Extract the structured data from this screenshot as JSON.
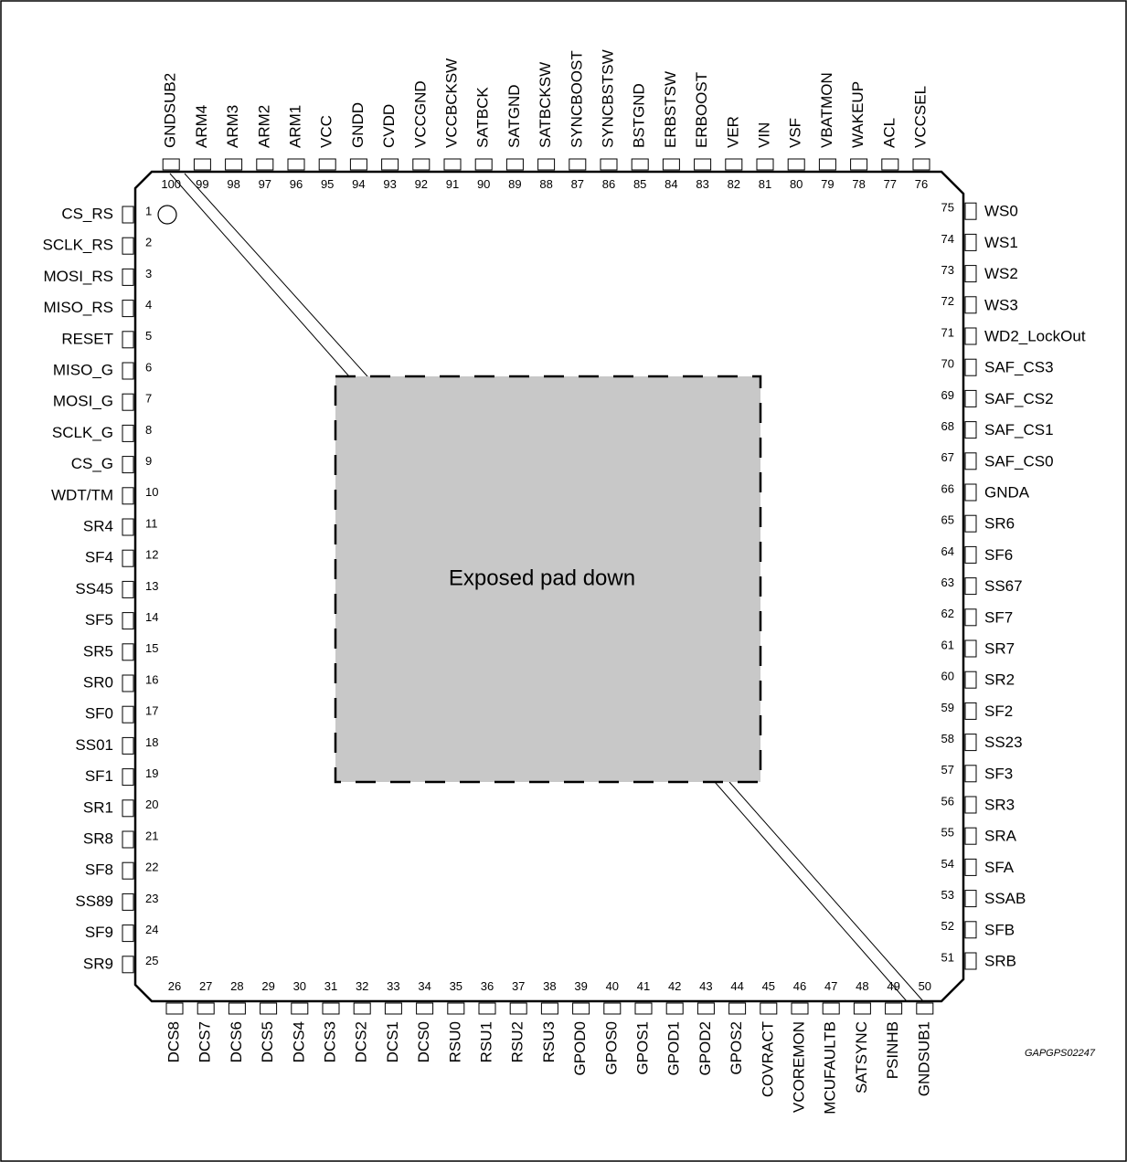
{
  "package": {
    "pad_label": "Exposed pad down",
    "doc_code": "GAPGPS02247"
  },
  "pins": {
    "left": [
      {
        "num": "1",
        "name": "CS_RS"
      },
      {
        "num": "2",
        "name": "SCLK_RS"
      },
      {
        "num": "3",
        "name": "MOSI_RS"
      },
      {
        "num": "4",
        "name": "MISO_RS"
      },
      {
        "num": "5",
        "name": "RESET"
      },
      {
        "num": "6",
        "name": "MISO_G"
      },
      {
        "num": "7",
        "name": "MOSI_G"
      },
      {
        "num": "8",
        "name": "SCLK_G"
      },
      {
        "num": "9",
        "name": "CS_G"
      },
      {
        "num": "10",
        "name": "WDT/TM"
      },
      {
        "num": "11",
        "name": "SR4"
      },
      {
        "num": "12",
        "name": "SF4"
      },
      {
        "num": "13",
        "name": "SS45"
      },
      {
        "num": "14",
        "name": "SF5"
      },
      {
        "num": "15",
        "name": "SR5"
      },
      {
        "num": "16",
        "name": "SR0"
      },
      {
        "num": "17",
        "name": "SF0"
      },
      {
        "num": "18",
        "name": "SS01"
      },
      {
        "num": "19",
        "name": "SF1"
      },
      {
        "num": "20",
        "name": "SR1"
      },
      {
        "num": "21",
        "name": "SR8"
      },
      {
        "num": "22",
        "name": "SF8"
      },
      {
        "num": "23",
        "name": "SS89"
      },
      {
        "num": "24",
        "name": "SF9"
      },
      {
        "num": "25",
        "name": "SR9"
      }
    ],
    "bottom": [
      {
        "num": "26",
        "name": "DCS8"
      },
      {
        "num": "27",
        "name": "DCS7"
      },
      {
        "num": "28",
        "name": "DCS6"
      },
      {
        "num": "29",
        "name": "DCS5"
      },
      {
        "num": "30",
        "name": "DCS4"
      },
      {
        "num": "31",
        "name": "DCS3"
      },
      {
        "num": "32",
        "name": "DCS2"
      },
      {
        "num": "33",
        "name": "DCS1"
      },
      {
        "num": "34",
        "name": "DCS0"
      },
      {
        "num": "35",
        "name": "RSU0"
      },
      {
        "num": "36",
        "name": "RSU1"
      },
      {
        "num": "37",
        "name": "RSU2"
      },
      {
        "num": "38",
        "name": "RSU3"
      },
      {
        "num": "39",
        "name": "GPOD0"
      },
      {
        "num": "40",
        "name": "GPOS0"
      },
      {
        "num": "41",
        "name": "GPOS1"
      },
      {
        "num": "42",
        "name": "GPOD1"
      },
      {
        "num": "43",
        "name": "GPOD2"
      },
      {
        "num": "44",
        "name": "GPOS2"
      },
      {
        "num": "45",
        "name": "COVRACT"
      },
      {
        "num": "46",
        "name": "VCOREMON"
      },
      {
        "num": "47",
        "name": "MCUFAULTB"
      },
      {
        "num": "48",
        "name": "SATSYNC"
      },
      {
        "num": "49",
        "name": "PSINHB"
      },
      {
        "num": "50",
        "name": "GNDSUB1"
      }
    ],
    "right": [
      {
        "num": "51",
        "name": "SRB"
      },
      {
        "num": "52",
        "name": "SFB"
      },
      {
        "num": "53",
        "name": "SSAB"
      },
      {
        "num": "54",
        "name": "SFA"
      },
      {
        "num": "55",
        "name": "SRA"
      },
      {
        "num": "56",
        "name": "SR3"
      },
      {
        "num": "57",
        "name": "SF3"
      },
      {
        "num": "58",
        "name": "SS23"
      },
      {
        "num": "59",
        "name": "SF2"
      },
      {
        "num": "60",
        "name": "SR2"
      },
      {
        "num": "61",
        "name": "SR7"
      },
      {
        "num": "62",
        "name": "SF7"
      },
      {
        "num": "63",
        "name": "SS67"
      },
      {
        "num": "64",
        "name": "SF6"
      },
      {
        "num": "65",
        "name": "SR6"
      },
      {
        "num": "66",
        "name": "GNDA"
      },
      {
        "num": "67",
        "name": "SAF_CS0"
      },
      {
        "num": "68",
        "name": "SAF_CS1"
      },
      {
        "num": "69",
        "name": "SAF_CS2"
      },
      {
        "num": "70",
        "name": "SAF_CS3"
      },
      {
        "num": "71",
        "name": "WD2_LockOut"
      },
      {
        "num": "72",
        "name": "WS3"
      },
      {
        "num": "73",
        "name": "WS2"
      },
      {
        "num": "74",
        "name": "WS1"
      },
      {
        "num": "75",
        "name": "WS0"
      }
    ],
    "top": [
      {
        "num": "76",
        "name": "VCCSEL"
      },
      {
        "num": "77",
        "name": "ACL"
      },
      {
        "num": "78",
        "name": "WAKEUP"
      },
      {
        "num": "79",
        "name": "VBATMON"
      },
      {
        "num": "80",
        "name": "VSF"
      },
      {
        "num": "81",
        "name": "VIN"
      },
      {
        "num": "82",
        "name": "VER"
      },
      {
        "num": "83",
        "name": "ERBOOST"
      },
      {
        "num": "84",
        "name": "ERBSTSW"
      },
      {
        "num": "85",
        "name": "BSTGND"
      },
      {
        "num": "86",
        "name": "SYNCBSTSW"
      },
      {
        "num": "87",
        "name": "SYNCBOOST"
      },
      {
        "num": "88",
        "name": "SATBCKSW"
      },
      {
        "num": "89",
        "name": "SATGND"
      },
      {
        "num": "90",
        "name": "SATBCK"
      },
      {
        "num": "91",
        "name": "VCCBCKSW"
      },
      {
        "num": "92",
        "name": "VCCGND"
      },
      {
        "num": "93",
        "name": "CVDD"
      },
      {
        "num": "94",
        "name": "GNDD"
      },
      {
        "num": "95",
        "name": "VCC"
      },
      {
        "num": "96",
        "name": "ARM1"
      },
      {
        "num": "97",
        "name": "ARM2"
      },
      {
        "num": "98",
        "name": "ARM3"
      },
      {
        "num": "99",
        "name": "ARM4"
      },
      {
        "num": "100",
        "name": "GNDSUB2"
      }
    ]
  }
}
